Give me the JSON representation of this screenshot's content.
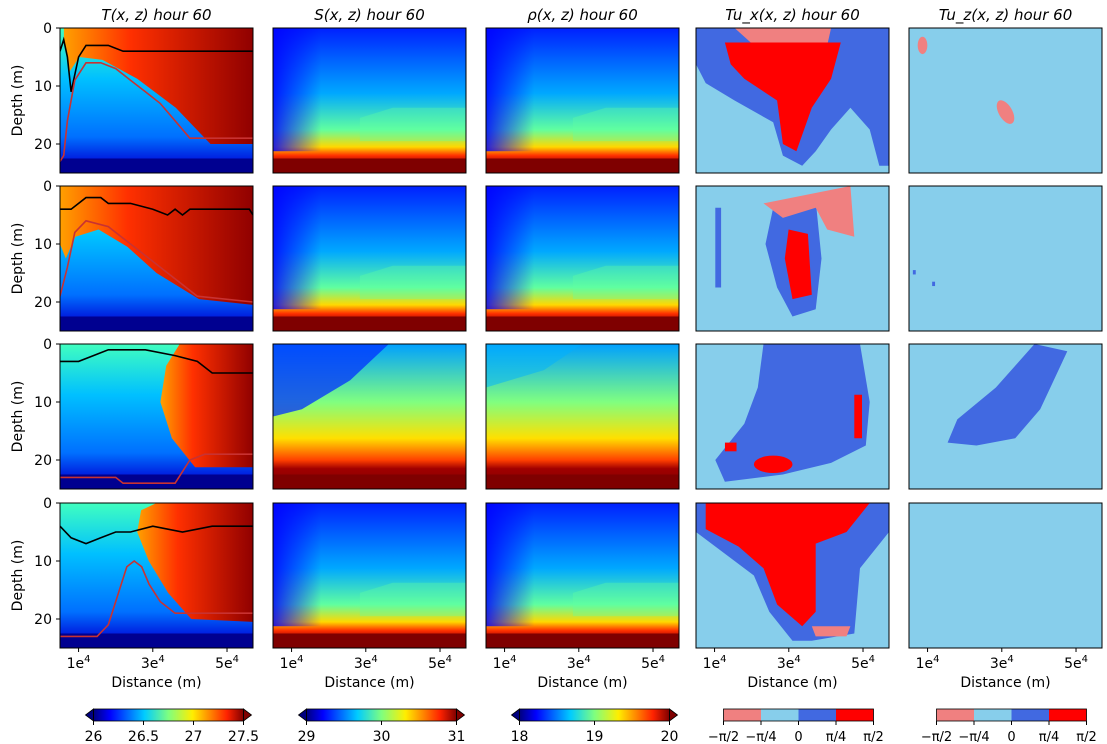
{
  "figure": {
    "column_titles": [
      "T(x, z) hour 60",
      "S(x, z) hour 60",
      "ρ(x, z) hour 60",
      "Tu_x(x, z) hour 60",
      "Tu_z(x, z) hour 60"
    ],
    "ylabel": "Depth (m)",
    "xlabel": "Distance (m)",
    "y_ticks": [
      "0",
      "10",
      "20"
    ],
    "x_ticks": [
      "1e4",
      "3e4",
      "5e4"
    ]
  },
  "colorbars": [
    {
      "type": "gradient",
      "ticks": [
        "26",
        "26.5",
        "27",
        "27.5"
      ],
      "range": [
        26,
        27.5
      ]
    },
    {
      "type": "gradient",
      "ticks": [
        "29",
        "30",
        "31"
      ],
      "range": [
        29,
        31
      ]
    },
    {
      "type": "gradient",
      "ticks": [
        "18",
        "19",
        "20"
      ],
      "range": [
        18,
        20
      ]
    },
    {
      "type": "discrete",
      "ticks": [
        "−π/2",
        "−π/4",
        "0",
        "π/4",
        "π/2"
      ],
      "colors": [
        "#f08080",
        "#87ceeb",
        "#4169e1",
        "#ff0000"
      ]
    },
    {
      "type": "discrete",
      "ticks": [
        "−π/2",
        "−π/4",
        "0",
        "π/4",
        "π/2"
      ],
      "colors": [
        "#f08080",
        "#87ceeb",
        "#4169e1",
        "#ff0000"
      ]
    }
  ],
  "chart_data": {
    "type": "heatmap",
    "rows": 4,
    "columns": 5,
    "x_range": [
      5000,
      57000
    ],
    "y_range": [
      25,
      0
    ],
    "x_tick_values": [
      10000,
      30000,
      50000
    ],
    "y_tick_values": [
      0,
      10,
      20
    ],
    "temperature_contours": [
      {
        "black": [
          [
            5000,
            4
          ],
          [
            6000,
            2
          ],
          [
            7000,
            5
          ],
          [
            8000,
            11
          ],
          [
            10000,
            5
          ],
          [
            12000,
            3
          ],
          [
            18000,
            3
          ],
          [
            22000,
            4
          ],
          [
            40000,
            4
          ],
          [
            57000,
            4
          ]
        ],
        "red": [
          [
            5000,
            23
          ],
          [
            6000,
            22
          ],
          [
            7000,
            16
          ],
          [
            9000,
            9
          ],
          [
            12000,
            6
          ],
          [
            16000,
            6
          ],
          [
            20000,
            7
          ],
          [
            24000,
            9
          ],
          [
            28000,
            11
          ],
          [
            32000,
            13
          ],
          [
            36000,
            16
          ],
          [
            40000,
            19
          ],
          [
            57000,
            19
          ]
        ]
      },
      {
        "black": [
          [
            5000,
            4
          ],
          [
            8000,
            4
          ],
          [
            12000,
            2
          ],
          [
            16000,
            2
          ],
          [
            18000,
            3
          ],
          [
            24000,
            3
          ],
          [
            30000,
            4
          ],
          [
            34000,
            5
          ],
          [
            36000,
            4
          ],
          [
            38000,
            5
          ],
          [
            40000,
            4
          ],
          [
            56000,
            4
          ],
          [
            57000,
            5
          ]
        ],
        "red": [
          [
            5000,
            19
          ],
          [
            7000,
            14
          ],
          [
            9000,
            8
          ],
          [
            12000,
            6
          ],
          [
            18000,
            7
          ],
          [
            22000,
            9
          ],
          [
            26000,
            11
          ],
          [
            30000,
            13
          ],
          [
            34000,
            15
          ],
          [
            38000,
            17
          ],
          [
            42000,
            19
          ],
          [
            57000,
            20
          ]
        ]
      },
      {
        "black": [
          [
            5000,
            3
          ],
          [
            10000,
            3
          ],
          [
            14000,
            2
          ],
          [
            18000,
            1
          ],
          [
            28000,
            1
          ],
          [
            36000,
            2
          ],
          [
            42000,
            3
          ],
          [
            46000,
            5
          ],
          [
            57000,
            5
          ]
        ],
        "red": [
          [
            5000,
            23
          ],
          [
            20000,
            23
          ],
          [
            22000,
            24
          ],
          [
            36000,
            24
          ],
          [
            40000,
            20
          ],
          [
            44000,
            19
          ],
          [
            57000,
            19
          ]
        ]
      },
      {
        "black": [
          [
            5000,
            4
          ],
          [
            8000,
            6
          ],
          [
            12000,
            7
          ],
          [
            16000,
            6
          ],
          [
            20000,
            5
          ],
          [
            24000,
            5
          ],
          [
            30000,
            4
          ],
          [
            38000,
            5
          ],
          [
            46000,
            4
          ],
          [
            57000,
            4
          ]
        ],
        "red": [
          [
            5000,
            23
          ],
          [
            15000,
            23
          ],
          [
            18000,
            21
          ],
          [
            21000,
            15
          ],
          [
            23000,
            11
          ],
          [
            25000,
            10
          ],
          [
            27000,
            11
          ],
          [
            29000,
            14
          ],
          [
            32000,
            17
          ],
          [
            36000,
            19
          ],
          [
            57000,
            19
          ]
        ]
      }
    ]
  }
}
